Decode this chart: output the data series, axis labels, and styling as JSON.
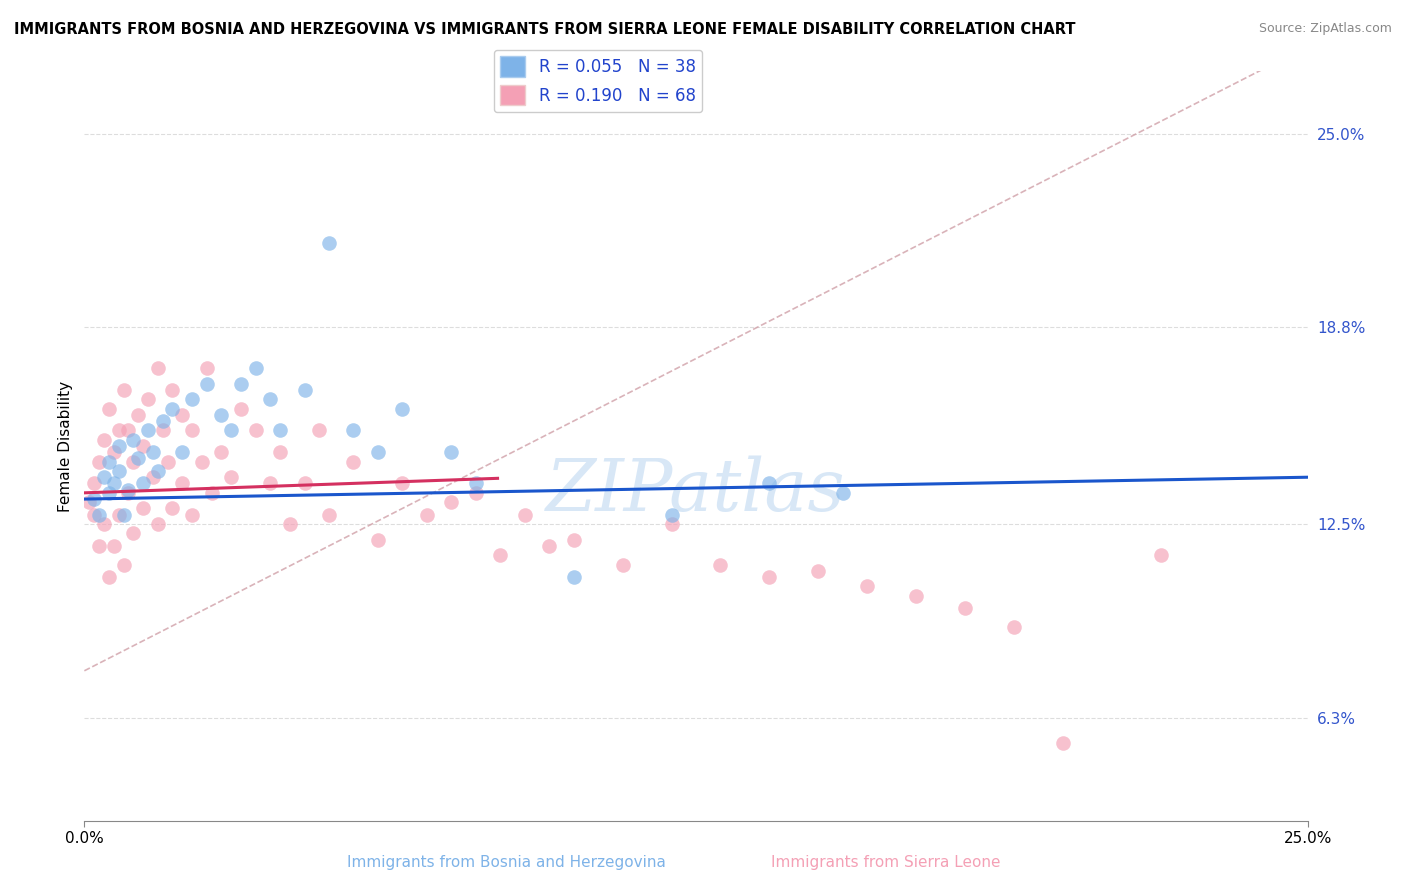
{
  "title": "IMMIGRANTS FROM BOSNIA AND HERZEGOVINA VS IMMIGRANTS FROM SIERRA LEONE FEMALE DISABILITY CORRELATION CHART",
  "source": "Source: ZipAtlas.com",
  "xlabel_blue": "Immigrants from Bosnia and Herzegovina",
  "xlabel_pink": "Immigrants from Sierra Leone",
  "ylabel": "Female Disability",
  "xlim": [
    0.0,
    0.25
  ],
  "ylim": [
    0.03,
    0.27
  ],
  "right_yticks": [
    0.063,
    0.125,
    0.188,
    0.25
  ],
  "right_yticklabels": [
    "6.3%",
    "12.5%",
    "18.8%",
    "25.0%"
  ],
  "bottom_xticklabels": [
    "0.0%",
    "25.0%"
  ],
  "legend_R_blue": "0.055",
  "legend_N_blue": "38",
  "legend_R_pink": "0.190",
  "legend_N_pink": "68",
  "color_blue": "#7EB3E8",
  "color_pink": "#F4A0B5",
  "color_trend_blue": "#1A56CC",
  "color_trend_pink": "#D43060",
  "color_trend_gray": "#D0A0A8",
  "watermark": "ZIPatlas",
  "watermark_color": "#B8D4F0"
}
